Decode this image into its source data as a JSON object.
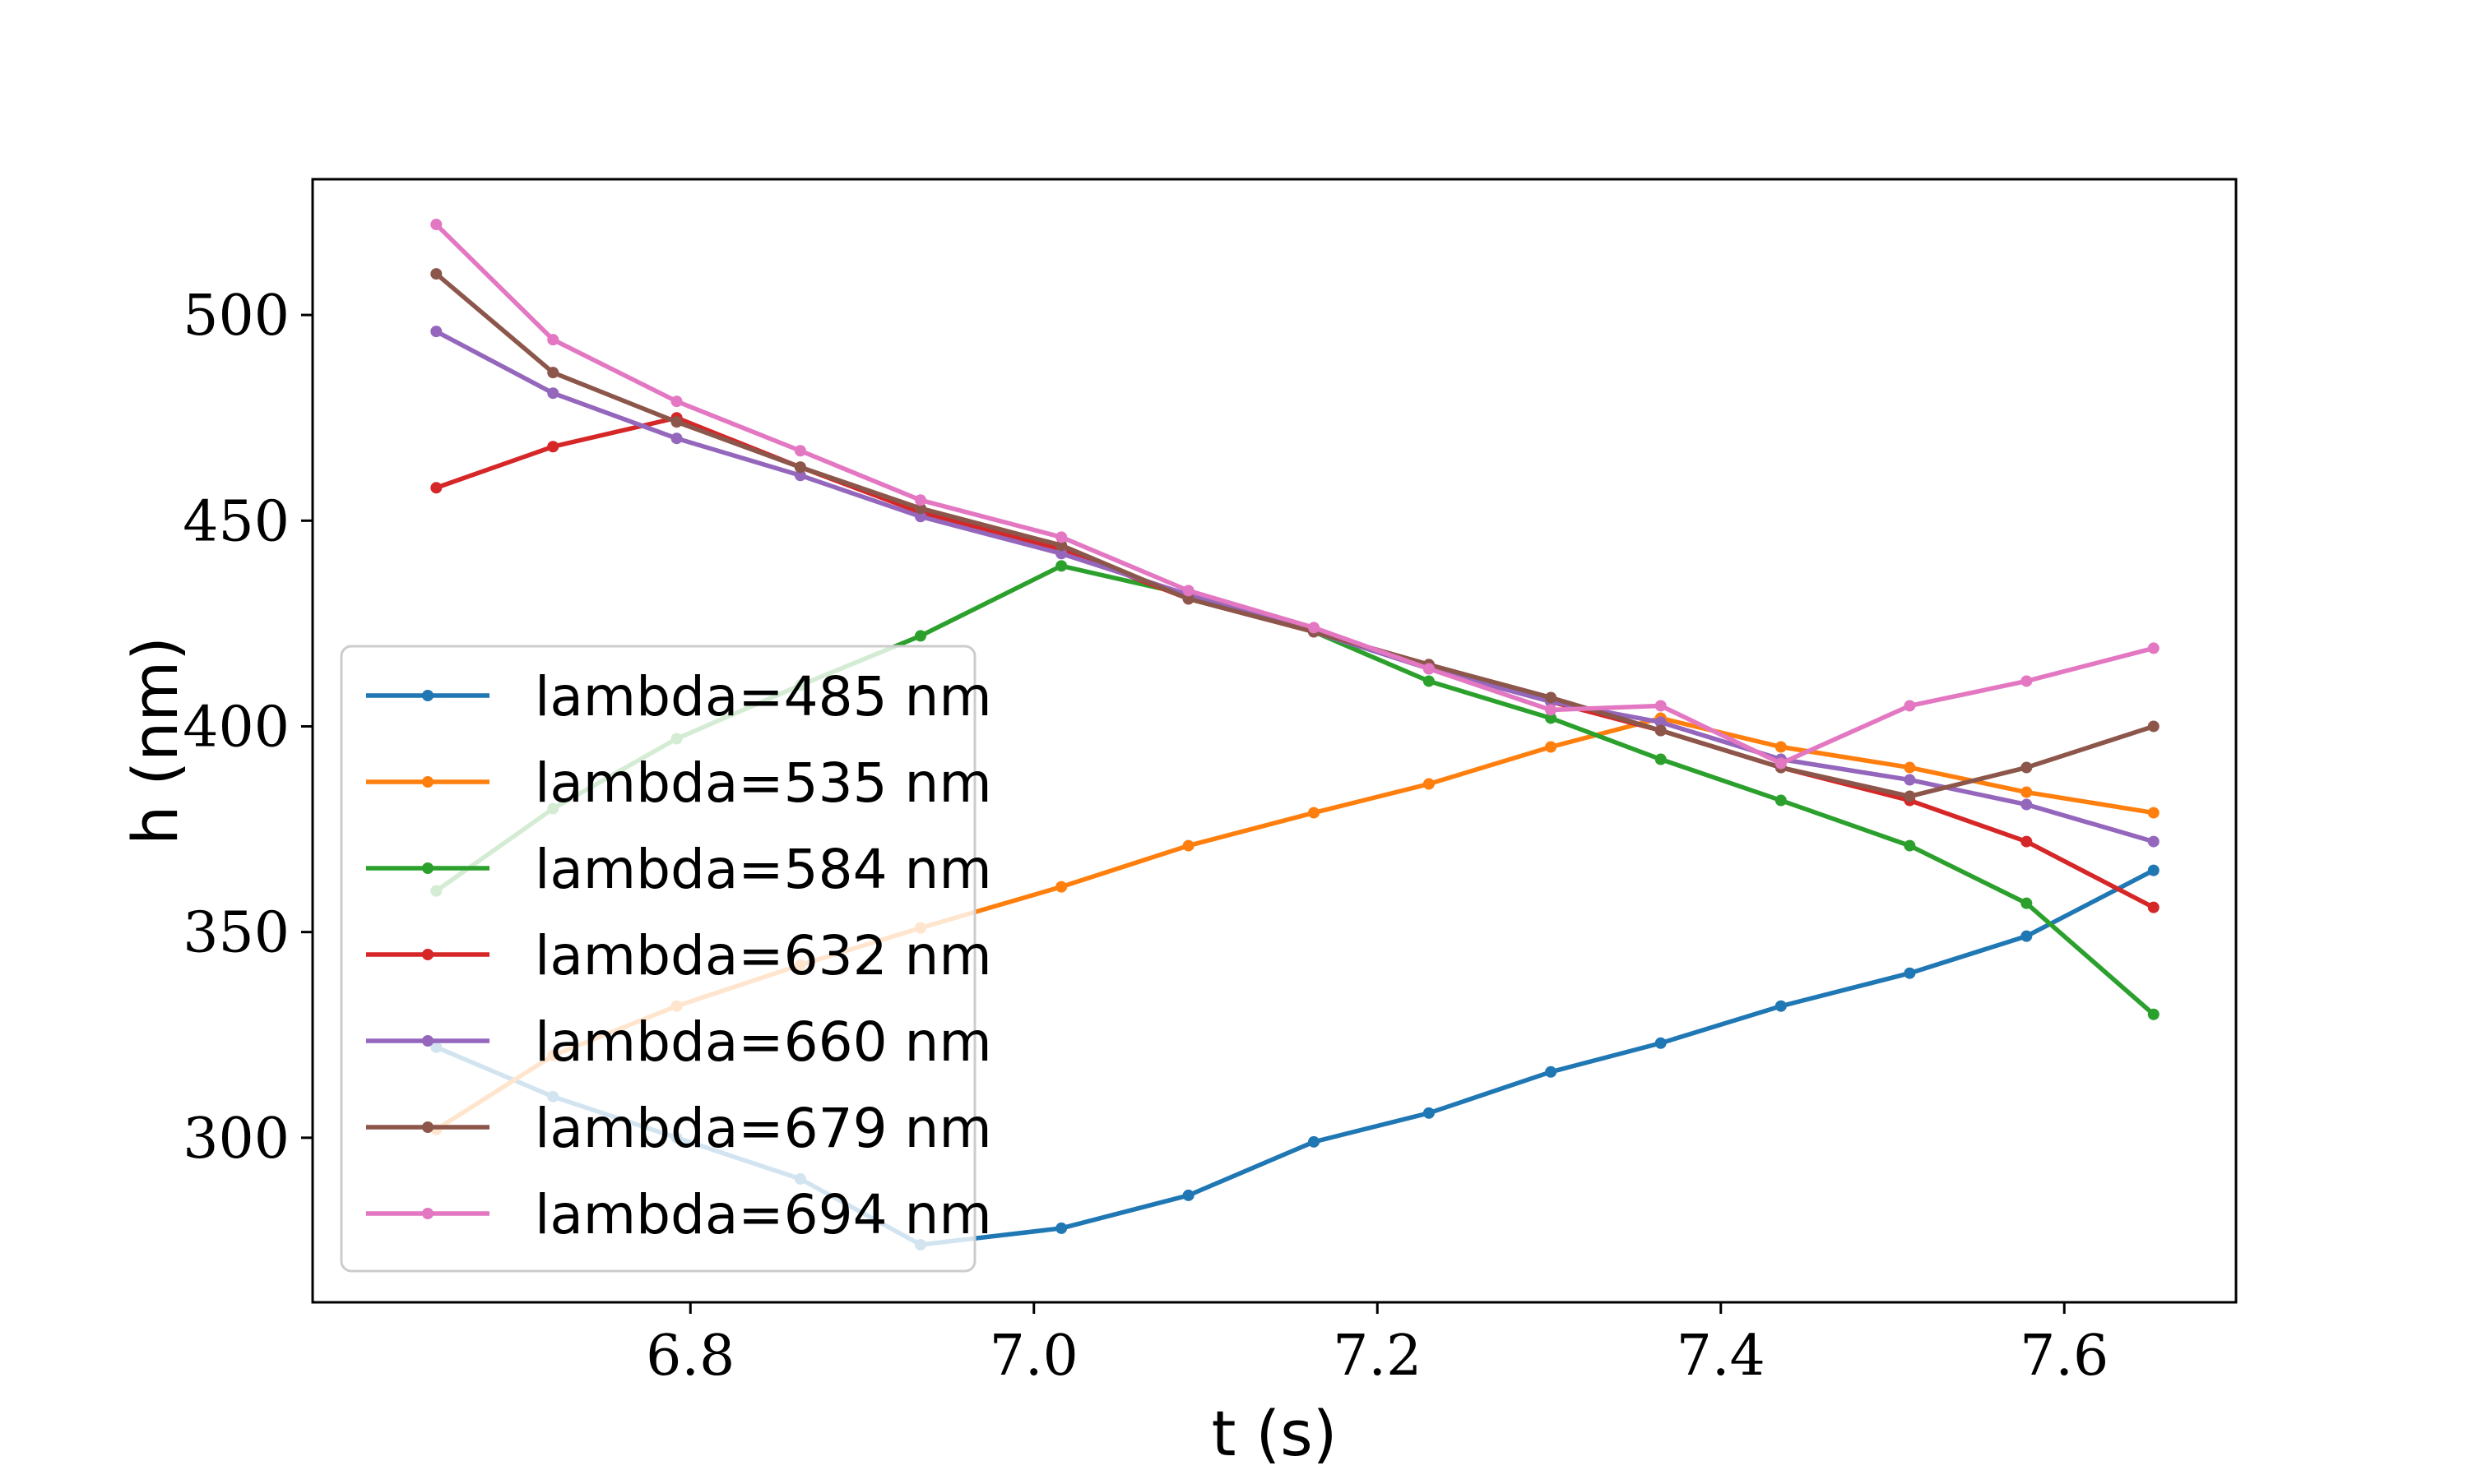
{
  "chart_data": {
    "type": "line",
    "xlabel": "t (s)",
    "ylabel": "h (nm)",
    "xlim": [
      6.58,
      7.7
    ],
    "ylim": [
      260,
      533
    ],
    "xticks": [
      6.8,
      7.0,
      7.2,
      7.4,
      7.6
    ],
    "xtick_labels": [
      "6.8",
      "7.0",
      "7.2",
      "7.4",
      "7.6"
    ],
    "yticks": [
      300,
      350,
      400,
      450,
      500
    ],
    "ytick_labels": [
      "300",
      "350",
      "400",
      "450",
      "500"
    ],
    "grid": false,
    "legend_position": "lower-left",
    "marker": "dot",
    "x": [
      6.652,
      6.72,
      6.792,
      6.864,
      6.934,
      7.016,
      7.09,
      7.163,
      7.23,
      7.301,
      7.365,
      7.435,
      7.51,
      7.578,
      7.652
    ],
    "series": [
      {
        "name": "lambda=485 nm",
        "color": "#1f77b4",
        "values": [
          322,
          310,
          300,
          290,
          274,
          278,
          286,
          299,
          306,
          316,
          323,
          332,
          340,
          349,
          365
        ]
      },
      {
        "name": "lambda=535 nm",
        "color": "#ff7f0e",
        "values": [
          302,
          320,
          332,
          342,
          351,
          361,
          371,
          379,
          386,
          395,
          402,
          395,
          390,
          384,
          379
        ]
      },
      {
        "name": "lambda=584 nm",
        "color": "#2ca02c",
        "values": [
          360,
          380,
          397,
          410,
          422,
          439,
          432,
          423,
          411,
          402,
          392,
          382,
          371,
          357,
          330
        ]
      },
      {
        "name": "lambda=632 nm",
        "color": "#d62728",
        "values": [
          458,
          468,
          475,
          463,
          452,
          443,
          431,
          423,
          415,
          406,
          399,
          390,
          382,
          372,
          356
        ]
      },
      {
        "name": "lambda=660 nm",
        "color": "#9467bd",
        "values": [
          496,
          481,
          470,
          461,
          451,
          442,
          432,
          423,
          414,
          406,
          401,
          392,
          387,
          381,
          372
        ]
      },
      {
        "name": "lambda=679 nm",
        "color": "#8c564b",
        "values": [
          510,
          486,
          474,
          463,
          453,
          444,
          431,
          423,
          415,
          407,
          399,
          390,
          383,
          390,
          400
        ]
      },
      {
        "name": "lambda=694 nm",
        "color": "#e377c2",
        "values": [
          522,
          494,
          479,
          467,
          455,
          446,
          433,
          424,
          414,
          404,
          405,
          391,
          405,
          411,
          419
        ]
      }
    ]
  }
}
